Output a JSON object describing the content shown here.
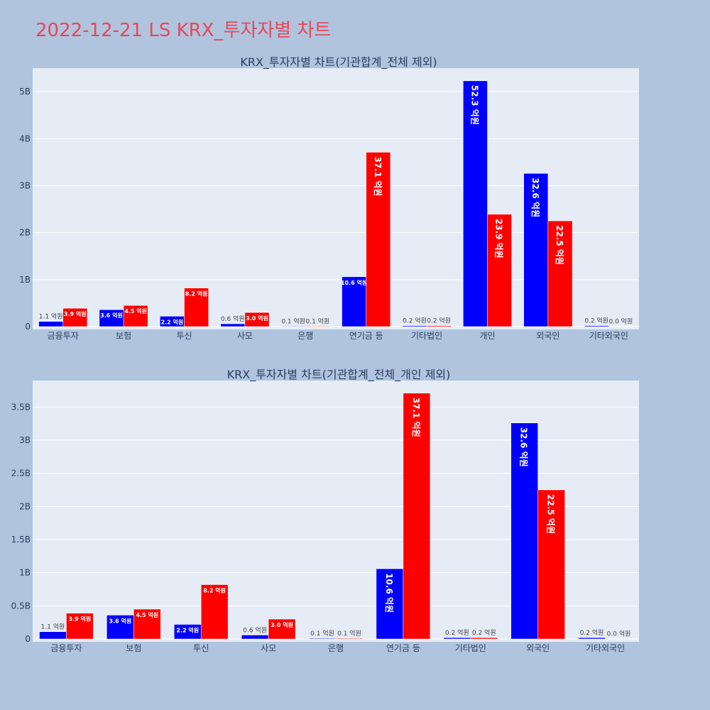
{
  "page": {
    "title": "2022-12-21 LS KRX_투자자별 차트"
  },
  "colors": {
    "buy": "#0000ff",
    "sell": "#ff0000",
    "plot_bg": "#e5ecf6",
    "page_bg": "#b0c4de",
    "title": "#e8475a"
  },
  "chart_data": [
    {
      "type": "bar",
      "title": "KRX_투자자별 차트(기관합계_전체 제외)",
      "categories": [
        "금융투자",
        "보험",
        "투신",
        "사모",
        "은행",
        "연기금 등",
        "기타법인",
        "개인",
        "외국인",
        "기타외국인"
      ],
      "series": [
        {
          "values": [
            0.11,
            0.36,
            0.22,
            0.06,
            0.01,
            1.06,
            0.02,
            5.23,
            3.26,
            0.02
          ],
          "labels": [
            "1.1 억원",
            "3.6 억원",
            "2.2 억원",
            "0.6 억원",
            "0.1 억원",
            "10.6 억원",
            "0.2 억원",
            "52.3 억원",
            "32.6 억원",
            "0.2 억원"
          ]
        },
        {
          "values": [
            0.39,
            0.45,
            0.82,
            0.3,
            0.01,
            3.71,
            0.02,
            2.39,
            2.25,
            0.0
          ],
          "labels": [
            "3.9 억원",
            "4.5 억원",
            "8.2 억원",
            "3.0 억원",
            "0.1 억원",
            "37.1 억원",
            "0.2 억원",
            "23.9 억원",
            "22.5 억원",
            "0.0 억원"
          ]
        }
      ],
      "ylim": [
        0,
        5.5
      ],
      "yticks": [
        0,
        1,
        2,
        3,
        4,
        5
      ],
      "ytick_labels": [
        "0",
        "1B",
        "2B",
        "3B",
        "4B",
        "5B"
      ]
    },
    {
      "type": "bar",
      "title": "KRX_투자자별 차트(기관합계_전체_개인 제외)",
      "categories": [
        "금융투자",
        "보험",
        "투신",
        "사모",
        "은행",
        "연기금 등",
        "기타법인",
        "외국인",
        "기타외국인"
      ],
      "series": [
        {
          "values": [
            0.11,
            0.36,
            0.22,
            0.06,
            0.01,
            1.06,
            0.02,
            3.26,
            0.02
          ],
          "labels": [
            "1.1 억원",
            "3.6 억원",
            "2.2 억원",
            "0.6 억원",
            "0.1 억원",
            "10.6 억원",
            "0.2 억원",
            "32.6 억원",
            "0.2 억원"
          ]
        },
        {
          "values": [
            0.39,
            0.45,
            0.82,
            0.3,
            0.01,
            3.71,
            0.02,
            2.25,
            0.0
          ],
          "labels": [
            "3.9 억원",
            "4.5 억원",
            "8.2 억원",
            "3.0 억원",
            "0.1 억원",
            "37.1 억원",
            "0.2 억원",
            "22.5 억원",
            "0.0 억원"
          ]
        }
      ],
      "ylim": [
        0,
        3.9
      ],
      "yticks": [
        0,
        0.5,
        1,
        1.5,
        2,
        2.5,
        3,
        3.5
      ],
      "ytick_labels": [
        "0",
        "0.5B",
        "1B",
        "1.5B",
        "2B",
        "2.5B",
        "3B",
        "3.5B"
      ]
    }
  ]
}
